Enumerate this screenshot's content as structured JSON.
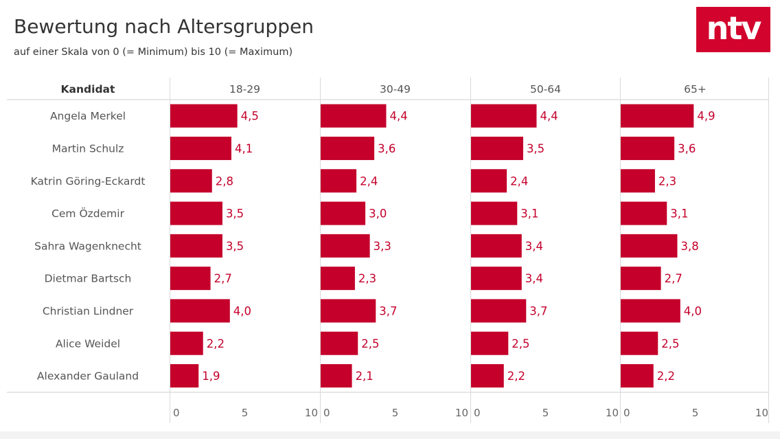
{
  "header": {
    "title": "Bewertung nach Altersgruppen",
    "subtitle": "auf einer Skala von 0 (= Minimum) bis 10 (= Maximum)",
    "logo_text": "ntv"
  },
  "colors": {
    "bar": "#c4002b",
    "label": "#c4002b",
    "logo_bg": "#d2042d",
    "text": "#333333",
    "grid": "#d9d9d9"
  },
  "chart_data": {
    "type": "bar",
    "orientation": "horizontal",
    "row_header": "Kandidat",
    "categories": [
      "Angela Merkel",
      "Martin Schulz",
      "Katrin Göring-Eckardt",
      "Cem Özdemir",
      "Sahra Wagenknecht",
      "Dietmar Bartsch",
      "Christian Lindner",
      "Alice Weidel",
      "Alexander Gauland"
    ],
    "series": [
      {
        "name": "18-29",
        "values": [
          4.5,
          4.1,
          2.8,
          3.5,
          3.5,
          2.7,
          4.0,
          2.2,
          1.9
        ],
        "labels": [
          "4,5",
          "4,1",
          "2,8",
          "3,5",
          "3,5",
          "2,7",
          "4,0",
          "2,2",
          "1,9"
        ]
      },
      {
        "name": "30-49",
        "values": [
          4.4,
          3.6,
          2.4,
          3.0,
          3.3,
          2.3,
          3.7,
          2.5,
          2.1
        ],
        "labels": [
          "4,4",
          "3,6",
          "2,4",
          "3,0",
          "3,3",
          "2,3",
          "3,7",
          "2,5",
          "2,1"
        ]
      },
      {
        "name": "50-64",
        "values": [
          4.4,
          3.5,
          2.4,
          3.1,
          3.4,
          3.4,
          3.7,
          2.5,
          2.2
        ],
        "labels": [
          "4,4",
          "3,5",
          "2,4",
          "3,1",
          "3,4",
          "3,4",
          "3,7",
          "2,5",
          "2,2"
        ]
      },
      {
        "name": "65+",
        "values": [
          4.9,
          3.6,
          2.3,
          3.1,
          3.8,
          2.7,
          4.0,
          2.5,
          2.2
        ],
        "labels": [
          "4,9",
          "3,6",
          "2,3",
          "3,1",
          "3,8",
          "2,7",
          "4,0",
          "2,5",
          "2,2"
        ]
      }
    ],
    "xlim": [
      0,
      10
    ],
    "xticks": [
      0,
      5,
      10
    ],
    "xtick_labels": [
      "0",
      "5",
      "10"
    ],
    "grid": false,
    "legend": "none"
  }
}
